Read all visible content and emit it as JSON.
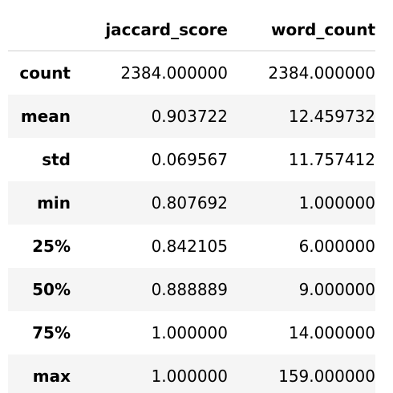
{
  "table": {
    "columns": [
      "jaccard_score",
      "word_count"
    ],
    "rows": [
      {
        "label": "count",
        "values": [
          "2384.000000",
          "2384.000000"
        ]
      },
      {
        "label": "mean",
        "values": [
          "0.903722",
          "12.459732"
        ]
      },
      {
        "label": "std",
        "values": [
          "0.069567",
          "11.757412"
        ]
      },
      {
        "label": "min",
        "values": [
          "0.807692",
          "1.000000"
        ]
      },
      {
        "label": "25%",
        "values": [
          "0.842105",
          "6.000000"
        ]
      },
      {
        "label": "50%",
        "values": [
          "0.888889",
          "9.000000"
        ]
      },
      {
        "label": "75%",
        "values": [
          "1.000000",
          "14.000000"
        ]
      },
      {
        "label": "max",
        "values": [
          "1.000000",
          "159.000000"
        ]
      }
    ]
  },
  "colors": {
    "stripe": "#f5f5f5",
    "header_rule": "#cfcfcf",
    "text": "#000000"
  }
}
